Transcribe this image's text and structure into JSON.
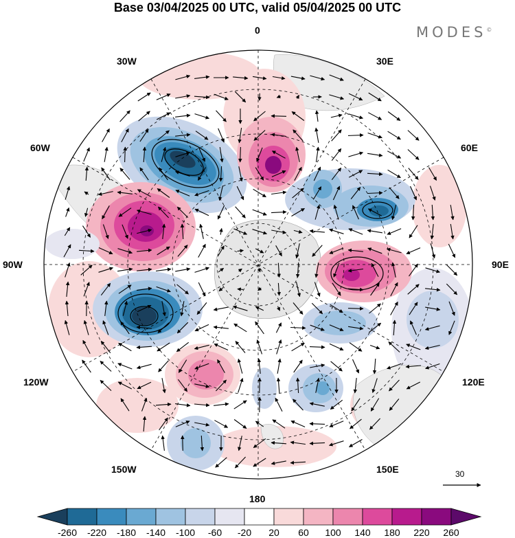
{
  "title": "Base 03/04/2025 00 UTC, valid 05/04/2025 00 UTC",
  "brand": "MODES",
  "brand_mark": "©",
  "longitude_labels": {
    "lon_0": "0",
    "lon_30e": "30E",
    "lon_60e": "60E",
    "lon_90e": "90E",
    "lon_120e": "120E",
    "lon_150e": "150E",
    "lon_180": "180",
    "lon_150w": "150W",
    "lon_120w": "120W",
    "lon_90w": "90W",
    "lon_60w": "60W",
    "lon_30w": "30W"
  },
  "reference_vector_value": "30",
  "colorbar": {
    "ticks": [
      "-260",
      "-220",
      "-180",
      "-140",
      "-100",
      "-60",
      "-20",
      "20",
      "60",
      "100",
      "140",
      "180",
      "220",
      "260"
    ],
    "colors": [
      "#1a3f5c",
      "#1f6a96",
      "#3a8bbd",
      "#6aa9d2",
      "#9fc3e1",
      "#c8d5ea",
      "#e6e6f1",
      "#ffffff",
      "#f9dada",
      "#f4b5c3",
      "#ec86ad",
      "#dd4a9c",
      "#b81b8d",
      "#8a0a7e",
      "#5c0a6a"
    ]
  }
}
